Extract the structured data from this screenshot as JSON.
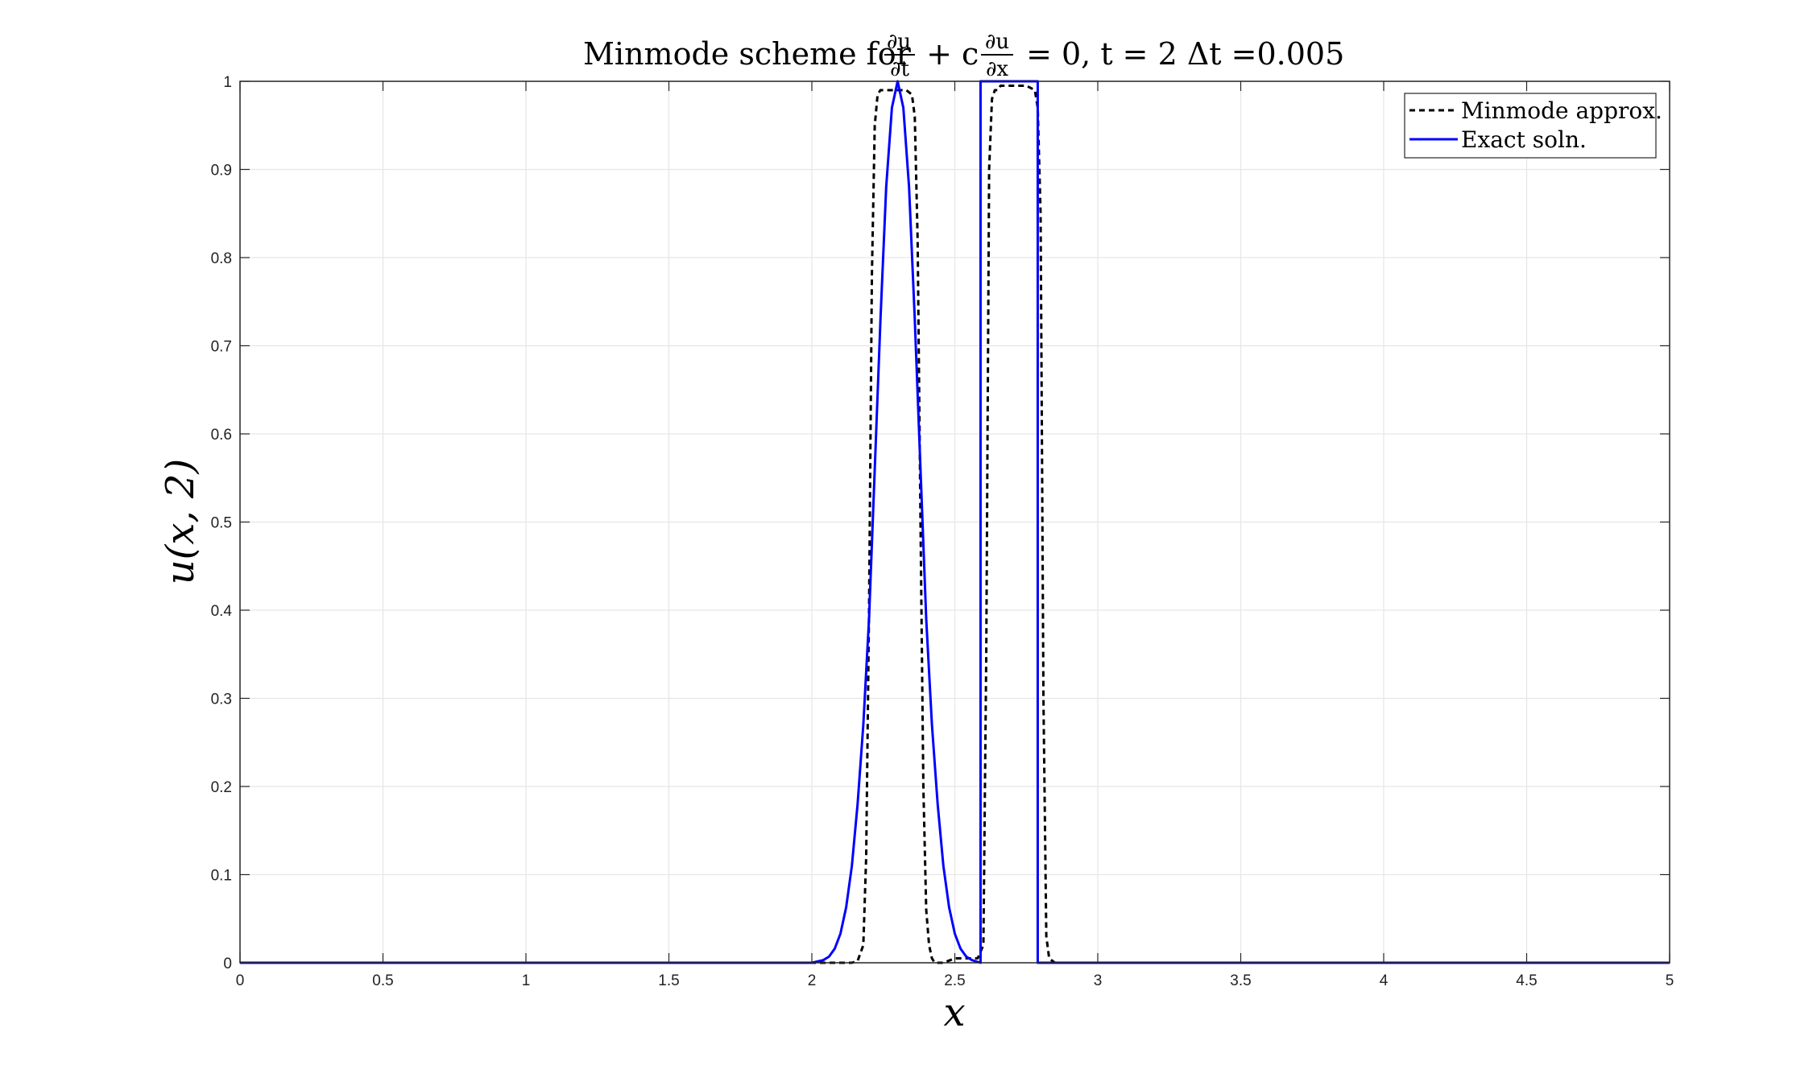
{
  "chart_data": {
    "type": "line",
    "title": "Minmode scheme for ∂u/∂t + c ∂u/∂x = 0, t = 2 Δt =0.005",
    "title_parts": {
      "prefix": "Minmode scheme for ",
      "frac1_num": "∂u",
      "frac1_den": "∂t",
      "mid": " + c",
      "frac2_num": "∂u",
      "frac2_den": "∂x",
      "suffix": " = 0, t = 2 Δt =0.005"
    },
    "xlabel": "x",
    "ylabel": "u(x, 2)",
    "xlim": [
      0,
      5
    ],
    "ylim": [
      0,
      1
    ],
    "xticks": [
      "0",
      "0.5",
      "1",
      "1.5",
      "2",
      "2.5",
      "3",
      "3.5",
      "4",
      "4.5",
      "5"
    ],
    "yticks": [
      "0",
      "0.1",
      "0.2",
      "0.3",
      "0.4",
      "0.5",
      "0.6",
      "0.7",
      "0.8",
      "0.9",
      "1"
    ],
    "grid": true,
    "legend_position": "top-right",
    "series": [
      {
        "name": "Minmode approx.",
        "style": "dashed",
        "color": "#000000",
        "x": [
          0,
          2.0,
          2.1,
          2.14,
          2.16,
          2.18,
          2.19,
          2.2,
          2.21,
          2.22,
          2.23,
          2.24,
          2.25,
          2.27,
          2.3,
          2.33,
          2.35,
          2.36,
          2.37,
          2.38,
          2.39,
          2.4,
          2.41,
          2.42,
          2.43,
          2.46,
          2.5,
          2.58,
          2.6,
          2.61,
          2.62,
          2.63,
          2.64,
          2.65,
          2.66,
          2.7,
          2.75,
          2.78,
          2.79,
          2.8,
          2.81,
          2.82,
          2.83,
          2.85,
          3.0,
          5.0
        ],
        "y": [
          0,
          0,
          0,
          0,
          0.002,
          0.02,
          0.12,
          0.4,
          0.78,
          0.95,
          0.985,
          0.99,
          0.99,
          0.99,
          0.99,
          0.99,
          0.985,
          0.96,
          0.82,
          0.5,
          0.2,
          0.06,
          0.02,
          0.005,
          0,
          0,
          0.005,
          0.005,
          0.02,
          0.35,
          0.9,
          0.98,
          0.99,
          0.99,
          0.995,
          0.995,
          0.995,
          0.99,
          0.97,
          0.85,
          0.3,
          0.03,
          0.005,
          0,
          0,
          0
        ]
      },
      {
        "name": "Exact soln.",
        "style": "solid",
        "color": "#0000ff",
        "x": [
          0,
          2.0,
          2.04,
          2.06,
          2.08,
          2.1,
          2.12,
          2.14,
          2.16,
          2.18,
          2.2,
          2.22,
          2.24,
          2.26,
          2.28,
          2.3,
          2.32,
          2.34,
          2.36,
          2.38,
          2.4,
          2.42,
          2.44,
          2.46,
          2.48,
          2.5,
          2.52,
          2.54,
          2.56,
          2.59,
          2.59,
          2.6,
          2.79,
          2.79,
          2.8,
          5.0
        ],
        "y": [
          0,
          0,
          0.003,
          0.007,
          0.016,
          0.033,
          0.063,
          0.11,
          0.18,
          0.27,
          0.39,
          0.56,
          0.73,
          0.88,
          0.97,
          1.0,
          0.97,
          0.88,
          0.73,
          0.56,
          0.39,
          0.27,
          0.18,
          0.11,
          0.063,
          0.033,
          0.016,
          0.007,
          0.003,
          0.0,
          1.0,
          1.0,
          1.0,
          0.0,
          0.0,
          0.0
        ]
      }
    ]
  }
}
